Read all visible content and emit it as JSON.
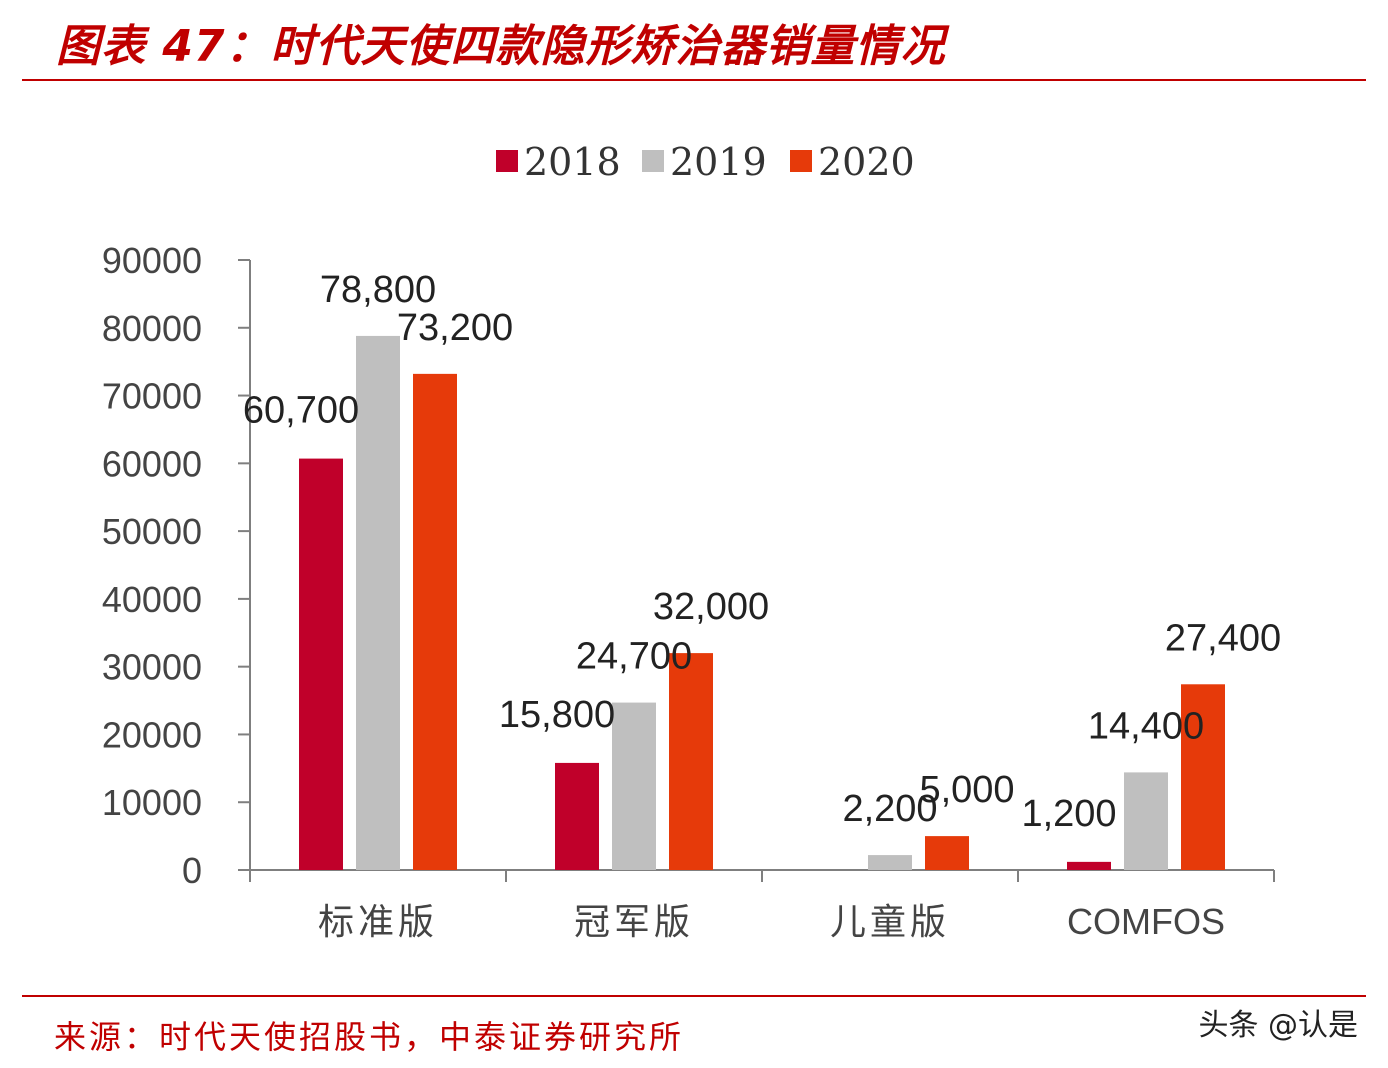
{
  "header": {
    "title": "图表 47：时代天使四款隐形矫治器销量情况"
  },
  "footer": {
    "source": "来源：时代天使招股书，中泰证券研究所",
    "watermark": "头条 @认是"
  },
  "colors": {
    "title_red": "#c00000",
    "series_2018": "#c0002a",
    "series_2019": "#bfbfbf",
    "series_2020": "#e63a0a",
    "axis": "#7f7f7f"
  },
  "chart_data": {
    "type": "bar",
    "title": "",
    "xlabel": "",
    "ylabel": "",
    "categories": [
      "标准版",
      "冠军版",
      "儿童版",
      "COMFOS"
    ],
    "series": [
      {
        "name": "2018",
        "values": [
          60700,
          15800,
          0,
          1200
        ],
        "labels": [
          "60,700",
          "15,800",
          "",
          "1,200"
        ]
      },
      {
        "name": "2019",
        "values": [
          78800,
          24700,
          2200,
          14400
        ],
        "labels": [
          "78,800",
          "24,700",
          "2,200",
          "14,400"
        ]
      },
      {
        "name": "2020",
        "values": [
          73200,
          32000,
          5000,
          27400
        ],
        "labels": [
          "73,200",
          "32,000",
          "5,000",
          "27,400"
        ]
      }
    ],
    "ylim": [
      0,
      90000
    ],
    "yticks": [
      "0",
      "10000",
      "20000",
      "30000",
      "40000",
      "50000",
      "60000",
      "70000",
      "80000",
      "90000"
    ],
    "grid": false,
    "legend_position": "top-center"
  }
}
